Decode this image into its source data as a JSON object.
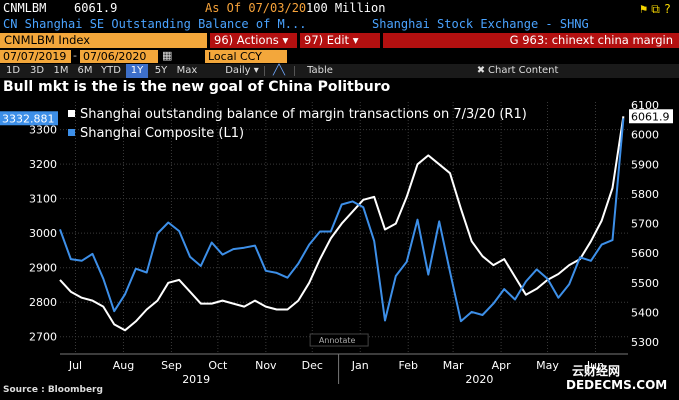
{
  "header": {
    "ticker": "CNMLBM",
    "last_value": "6061.9",
    "as_of": "As Of 07/03/20",
    "unit": "100 Million",
    "description": "CN Shanghai SE Outstanding Balance of M...",
    "exchange": "Shanghai Stock Exchange - SHNG"
  },
  "toolbar": {
    "index_label": "CNMLBM Index",
    "actions_label": "96) Actions ▾",
    "edit_label": "97) Edit ▾",
    "function_title": "G 963: chinext china margin",
    "start_date": "07/07/2019",
    "end_date": "07/06/2020",
    "currency": "Local CCY",
    "ranges": [
      "1D",
      "3D",
      "1M",
      "6M",
      "YTD",
      "1Y",
      "5Y",
      "Max"
    ],
    "active_range": "1Y",
    "frequency": "Daily ▾",
    "table_label": "Table",
    "chart_content_label": "Chart Content"
  },
  "subtitle": "Bull mkt is the is the new goal of China Politburo",
  "source": "Source : Bloomberg",
  "watermark": [
    "云财经网",
    "DEDECMS.COM"
  ],
  "colors": {
    "primary_series": "#ffffff",
    "secondary_series": "#3d8fe8",
    "accent_orange": "#f3a73b",
    "accent_red": "#b31010"
  },
  "chart_data": {
    "type": "line",
    "legend": [
      "Shanghai outstanding balance of margin transactions on 7/3/20 (R1)",
      "Shanghai Composite (L1)"
    ],
    "legend_position": "top-left",
    "annotate_label": "Annotate",
    "x_range": [
      "2019-07-05",
      "2020-07-06"
    ],
    "x_ticks": [
      "Jul",
      "Aug",
      "Sep",
      "Oct",
      "Nov",
      "Dec",
      "Jan",
      "Feb",
      "Mar",
      "Apr",
      "May",
      "Jun"
    ],
    "x_tick_dates": [
      "2019-07-15",
      "2019-08-15",
      "2019-09-15",
      "2019-10-15",
      "2019-11-15",
      "2019-12-15",
      "2020-01-15",
      "2020-02-15",
      "2020-03-15",
      "2020-04-15",
      "2020-05-15",
      "2020-06-15"
    ],
    "year_labels": [
      {
        "label": "2019",
        "date": "2019-10-01"
      },
      {
        "label": "2020",
        "date": "2020-04-01"
      }
    ],
    "left_axis": {
      "range": [
        2650,
        3380
      ],
      "ticks": [
        2700,
        2800,
        2900,
        3000,
        3100,
        3200,
        3300
      ],
      "last_label": "3332.881"
    },
    "right_axis": {
      "range": [
        5260,
        6110
      ],
      "ticks": [
        5300,
        5400,
        5500,
        5600,
        5700,
        5800,
        5900,
        6000,
        6100
      ],
      "last_label": "6061.9"
    },
    "grid": true,
    "series": [
      {
        "name": "Shanghai outstanding balance of margin transactions on 7/3/20 (R1)",
        "axis": "right",
        "x": [
          "2019-07-05",
          "2019-07-12",
          "2019-07-19",
          "2019-07-26",
          "2019-08-02",
          "2019-08-09",
          "2019-08-16",
          "2019-08-23",
          "2019-08-30",
          "2019-09-06",
          "2019-09-13",
          "2019-09-20",
          "2019-09-27",
          "2019-10-04",
          "2019-10-11",
          "2019-10-18",
          "2019-10-25",
          "2019-11-01",
          "2019-11-08",
          "2019-11-15",
          "2019-11-22",
          "2019-11-29",
          "2019-12-06",
          "2019-12-13",
          "2019-12-20",
          "2019-12-27",
          "2020-01-03",
          "2020-01-10",
          "2020-01-17",
          "2020-01-24",
          "2020-01-31",
          "2020-02-07",
          "2020-02-14",
          "2020-02-21",
          "2020-02-28",
          "2020-03-06",
          "2020-03-13",
          "2020-03-20",
          "2020-03-27",
          "2020-04-03",
          "2020-04-10",
          "2020-04-17",
          "2020-04-24",
          "2020-05-01",
          "2020-05-08",
          "2020-05-15",
          "2020-05-22",
          "2020-05-29",
          "2020-06-05",
          "2020-06-12",
          "2020-06-19",
          "2020-06-26",
          "2020-07-03"
        ],
        "values": [
          5510,
          5470,
          5450,
          5440,
          5420,
          5360,
          5340,
          5370,
          5410,
          5440,
          5500,
          5510,
          5470,
          5430,
          5430,
          5440,
          5430,
          5420,
          5440,
          5420,
          5410,
          5410,
          5440,
          5500,
          5580,
          5650,
          5700,
          5740,
          5780,
          5790,
          5680,
          5700,
          5790,
          5900,
          5930,
          5900,
          5870,
          5750,
          5640,
          5590,
          5560,
          5580,
          5520,
          5460,
          5480,
          5510,
          5530,
          5560,
          5580,
          5640,
          5710,
          5820,
          6061.9
        ]
      },
      {
        "name": "Shanghai Composite (L1)",
        "axis": "left",
        "x": [
          "2019-07-05",
          "2019-07-12",
          "2019-07-19",
          "2019-07-26",
          "2019-08-02",
          "2019-08-09",
          "2019-08-16",
          "2019-08-23",
          "2019-08-30",
          "2019-09-06",
          "2019-09-13",
          "2019-09-20",
          "2019-09-27",
          "2019-10-04",
          "2019-10-11",
          "2019-10-18",
          "2019-10-25",
          "2019-11-01",
          "2019-11-08",
          "2019-11-15",
          "2019-11-22",
          "2019-11-29",
          "2019-12-06",
          "2019-12-13",
          "2019-12-20",
          "2019-12-27",
          "2020-01-03",
          "2020-01-10",
          "2020-01-17",
          "2020-01-24",
          "2020-01-31",
          "2020-02-07",
          "2020-02-14",
          "2020-02-21",
          "2020-02-28",
          "2020-03-06",
          "2020-03-13",
          "2020-03-20",
          "2020-03-27",
          "2020-04-03",
          "2020-04-10",
          "2020-04-17",
          "2020-04-24",
          "2020-05-01",
          "2020-05-08",
          "2020-05-15",
          "2020-05-22",
          "2020-05-29",
          "2020-06-05",
          "2020-06-12",
          "2020-06-19",
          "2020-06-26",
          "2020-07-03"
        ],
        "values": [
          3011,
          2925,
          2920,
          2940,
          2868,
          2774,
          2823,
          2897,
          2886,
          2999,
          3031,
          3006,
          2932,
          2905,
          2973,
          2938,
          2954,
          2958,
          2964,
          2891,
          2885,
          2871,
          2912,
          2967,
          3005,
          3005,
          3083,
          3092,
          3075,
          2977,
          2747,
          2876,
          2917,
          3039,
          2880,
          3034,
          2888,
          2745,
          2772,
          2763,
          2796,
          2838,
          2808,
          2860,
          2895,
          2868,
          2813,
          2852,
          2930,
          2920,
          2967,
          2980,
          3332.881
        ]
      }
    ]
  }
}
